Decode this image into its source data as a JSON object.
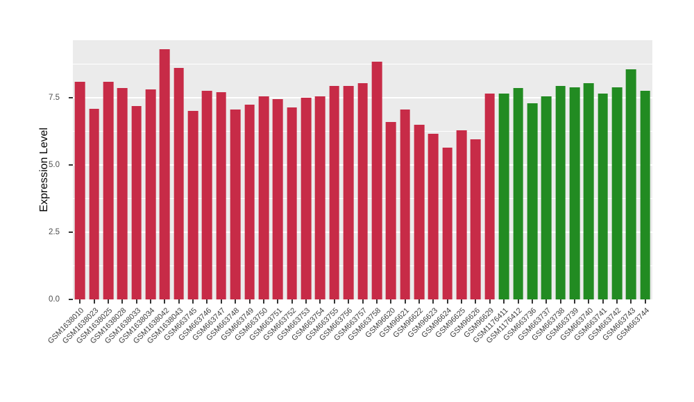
{
  "chart_data": {
    "type": "bar",
    "title": "",
    "xlabel": "",
    "ylabel": "Expression Level",
    "ylim": [
      0,
      9.64
    ],
    "ytick_labels": [
      "0.0",
      "2.5",
      "5.0",
      "7.5"
    ],
    "ytick_values": [
      0,
      2.5,
      5.0,
      7.5
    ],
    "minor_tick_values": [
      1.25,
      3.75,
      6.25,
      8.75
    ],
    "grid": true,
    "legend_position": "none",
    "panel_background": "#EBEBEB",
    "grid_color": "#FFFFFF",
    "bar_colors": {
      "red": "#C72B47",
      "green": "#228B22"
    },
    "categories": [
      "GSM1638010",
      "GSM1638023",
      "GSM1638025",
      "GSM1638028",
      "GSM1638033",
      "GSM1638034",
      "GSM1638042",
      "GSM1638043",
      "GSM663745",
      "GSM663746",
      "GSM663747",
      "GSM663748",
      "GSM663749",
      "GSM663750",
      "GSM663751",
      "GSM663752",
      "GSM663753",
      "GSM663754",
      "GSM663755",
      "GSM663756",
      "GSM663757",
      "GSM663758",
      "GSM96620",
      "GSM96621",
      "GSM96622",
      "GSM96623",
      "GSM96624",
      "GSM96625",
      "GSM96626",
      "GSM96629",
      "GSM1176411",
      "GSM1176412",
      "GSM663736",
      "GSM663737",
      "GSM663738",
      "GSM663739",
      "GSM663740",
      "GSM663741",
      "GSM663742",
      "GSM663743",
      "GSM663744"
    ],
    "values": [
      8.1,
      7.1,
      8.1,
      7.85,
      7.2,
      7.8,
      9.3,
      8.6,
      7.0,
      7.75,
      7.7,
      7.05,
      7.25,
      7.55,
      7.45,
      7.15,
      7.5,
      7.55,
      7.95,
      7.95,
      8.05,
      8.85,
      6.6,
      7.05,
      6.5,
      6.15,
      5.65,
      6.3,
      5.95,
      7.65,
      7.65,
      7.85,
      7.3,
      7.55,
      7.95,
      7.9,
      8.05,
      7.65,
      7.9,
      8.55,
      7.75
    ],
    "groups": [
      "red",
      "red",
      "red",
      "red",
      "red",
      "red",
      "red",
      "red",
      "red",
      "red",
      "red",
      "red",
      "red",
      "red",
      "red",
      "red",
      "red",
      "red",
      "red",
      "red",
      "red",
      "red",
      "red",
      "red",
      "red",
      "red",
      "red",
      "red",
      "red",
      "red",
      "green",
      "green",
      "green",
      "green",
      "green",
      "green",
      "green",
      "green",
      "green",
      "green",
      "green"
    ]
  }
}
